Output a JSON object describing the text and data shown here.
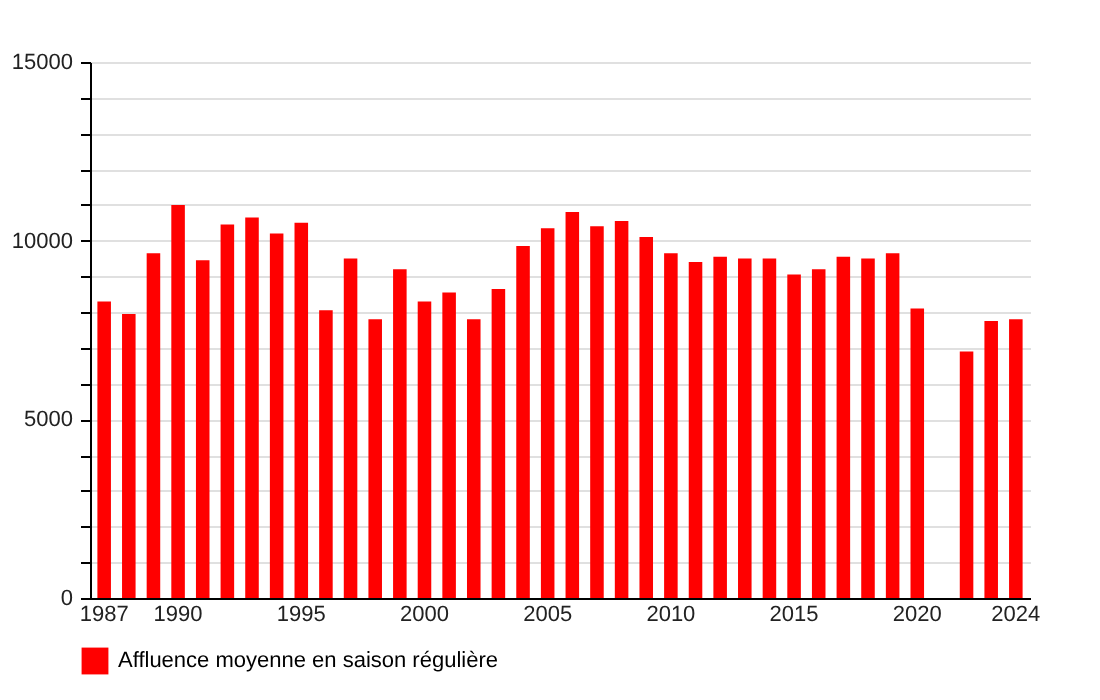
{
  "chart_data": {
    "type": "bar",
    "categories": [
      "1987",
      null,
      null,
      "1990",
      null,
      null,
      null,
      null,
      "1995",
      null,
      null,
      null,
      null,
      "2000",
      null,
      null,
      null,
      null,
      "2005",
      null,
      null,
      null,
      null,
      "2010",
      null,
      null,
      null,
      null,
      "2015",
      null,
      null,
      null,
      null,
      "2020",
      null,
      null,
      null,
      "2024"
    ],
    "series": [
      {
        "name": "Affluence moyenne en saison régulière",
        "color": "#ff0000",
        "values": [
          8300,
          7950,
          9650,
          11000,
          9450,
          10450,
          10650,
          10200,
          10500,
          8050,
          9500,
          7800,
          9200,
          8300,
          8550,
          7800,
          8650,
          9850,
          10350,
          10800,
          10400,
          10550,
          10100,
          9650,
          9400,
          9550,
          9500,
          9500,
          9050,
          9200,
          9550,
          9500,
          9650,
          8100,
          null,
          6900,
          7750,
          7800
        ]
      }
    ],
    "ylim": [
      0,
      15000
    ],
    "yticks": [
      0,
      {
        "value": 1000,
        "label": null
      },
      {
        "value": 2000,
        "label": null
      },
      {
        "value": 3000,
        "label": null
      },
      {
        "value": 4000,
        "label": null
      },
      5000,
      {
        "value": 6000,
        "label": null
      },
      {
        "value": 7000,
        "label": null
      },
      {
        "value": 8000,
        "label": null
      },
      {
        "value": 9000,
        "label": null
      },
      10000,
      {
        "value": 11000,
        "label": null
      },
      {
        "value": 12000,
        "label": null
      },
      {
        "value": 13000,
        "label": null
      },
      {
        "value": 14000,
        "label": null
      },
      15000
    ],
    "grid": true,
    "legend": "bottom left"
  }
}
